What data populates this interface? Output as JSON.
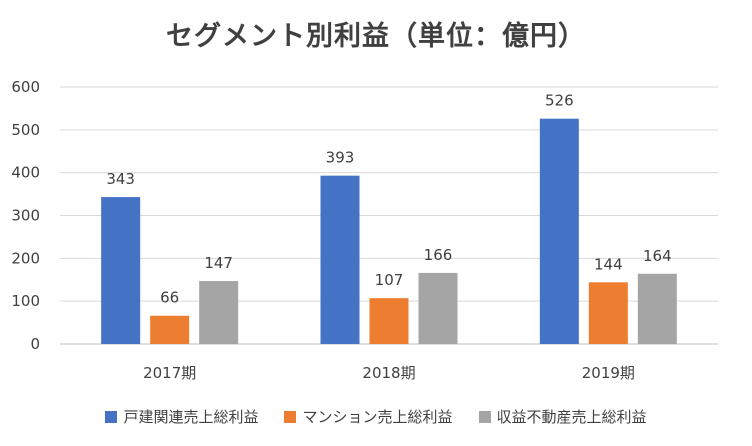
{
  "chart_data": {
    "type": "bar",
    "title": "セグメント別利益（単位：億円）",
    "categories": [
      "2017期",
      "2018期",
      "2019期"
    ],
    "series": [
      {
        "name": "戸建関連売上総利益",
        "color": "#4472C4",
        "values": [
          343,
          393,
          526
        ]
      },
      {
        "name": "マンション売上総利益",
        "color": "#ED7D31",
        "values": [
          66,
          107,
          144
        ]
      },
      {
        "name": "収益不動産売上総利益",
        "color": "#A5A5A5",
        "values": [
          147,
          166,
          164
        ]
      }
    ],
    "ylim": [
      0,
      600
    ],
    "yticks": [
      0,
      100,
      200,
      300,
      400,
      500,
      600
    ],
    "grid": true,
    "legend": "bottom"
  }
}
